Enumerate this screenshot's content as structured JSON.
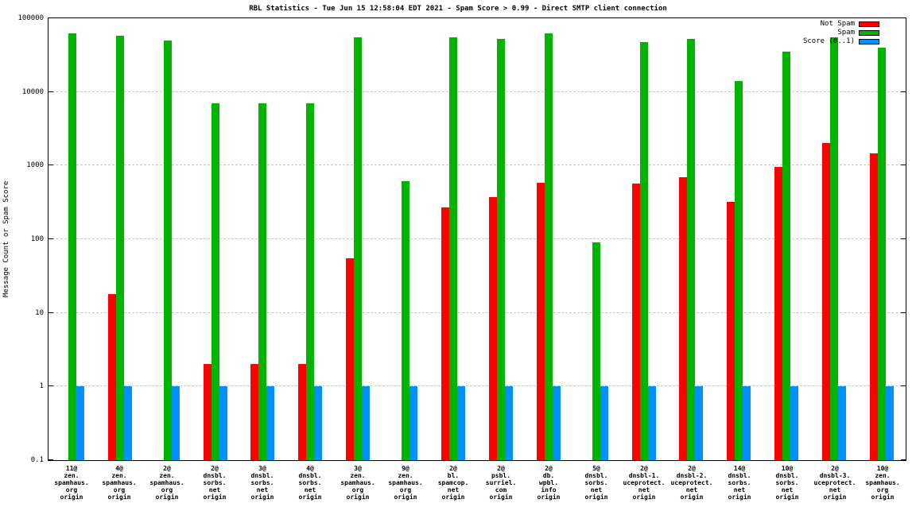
{
  "page": {
    "background": "#ffffff"
  },
  "chart_data": {
    "type": "bar",
    "title": "RBL Statistics - Tue Jun 15 12:58:04 EDT 2021 - Spam Score > 0.99 - Direct SMTP client connection",
    "ylabel": "Message Count or Spam Score",
    "xlabel": "",
    "y_scale": "log",
    "ylim": [
      0.1,
      100000
    ],
    "grid": true,
    "legend_position": "top-right",
    "y_ticks": [
      {
        "label": "100000",
        "value": 100000
      },
      {
        "label": "10000",
        "value": 10000
      },
      {
        "label": "1000",
        "value": 1000
      },
      {
        "label": "100",
        "value": 100
      },
      {
        "label": "10",
        "value": 10
      },
      {
        "label": "1",
        "value": 1
      },
      {
        "label": "0.1",
        "value": 0.1
      }
    ],
    "categories": [
      [
        "11@",
        "zen.",
        "spamhaus.",
        "org",
        "origin"
      ],
      [
        "4@",
        "zen.",
        "spamhaus.",
        "org",
        "origin"
      ],
      [
        "2@",
        "zen.",
        "spamhaus.",
        "org",
        "origin"
      ],
      [
        "2@",
        "dnsbl.",
        "sorbs.",
        "net",
        "origin"
      ],
      [
        "3@",
        "dnsbl.",
        "sorbs.",
        "net",
        "origin"
      ],
      [
        "4@",
        "dnsbl.",
        "sorbs.",
        "net",
        "origin"
      ],
      [
        "3@",
        "zen.",
        "spamhaus.",
        "org",
        "origin"
      ],
      [
        "9@",
        "zen.",
        "spamhaus.",
        "org",
        "origin"
      ],
      [
        "2@",
        "bl.",
        "spamcop.",
        "net",
        "origin"
      ],
      [
        "2@",
        "psbl.",
        "surriel.",
        "com",
        "origin"
      ],
      [
        "2@",
        "db.",
        "wpbl.",
        "info",
        "origin"
      ],
      [
        "5@",
        "dnsbl.",
        "sorbs.",
        "net",
        "origin"
      ],
      [
        "2@",
        "dnsbl-1.",
        "uceprotect.",
        "net",
        "origin"
      ],
      [
        "2@",
        "dnsbl-2.",
        "uceprotect.",
        "net",
        "origin"
      ],
      [
        "14@",
        "dnsbl.",
        "sorbs.",
        "net",
        "origin"
      ],
      [
        "10@",
        "dnsbl.",
        "sorbs.",
        "net",
        "origin"
      ],
      [
        "2@",
        "dnsbl-3.",
        "uceprotect.",
        "net",
        "origin"
      ],
      [
        "10@",
        "zen.",
        "spamhaus.",
        "org",
        "origin"
      ]
    ],
    "series": [
      {
        "name": "Not Spam",
        "color": "#ff0000",
        "values": [
          0,
          18,
          0,
          2,
          2,
          2,
          55,
          0,
          270,
          370,
          580,
          0,
          570,
          700,
          320,
          950,
          2000,
          1450
        ]
      },
      {
        "name": "Spam",
        "color": "#00b400",
        "values": [
          63000,
          58000,
          50000,
          7000,
          7000,
          7000,
          55000,
          620,
          55000,
          53000,
          62000,
          90,
          48000,
          52000,
          14000,
          35000,
          55000,
          40000
        ]
      },
      {
        "name": "Score (0..1)",
        "color": "#0090ff",
        "values": [
          1,
          1,
          1,
          1,
          1,
          1,
          1,
          1,
          1,
          1,
          1,
          1,
          1,
          1,
          1,
          1,
          1,
          1
        ]
      }
    ]
  }
}
